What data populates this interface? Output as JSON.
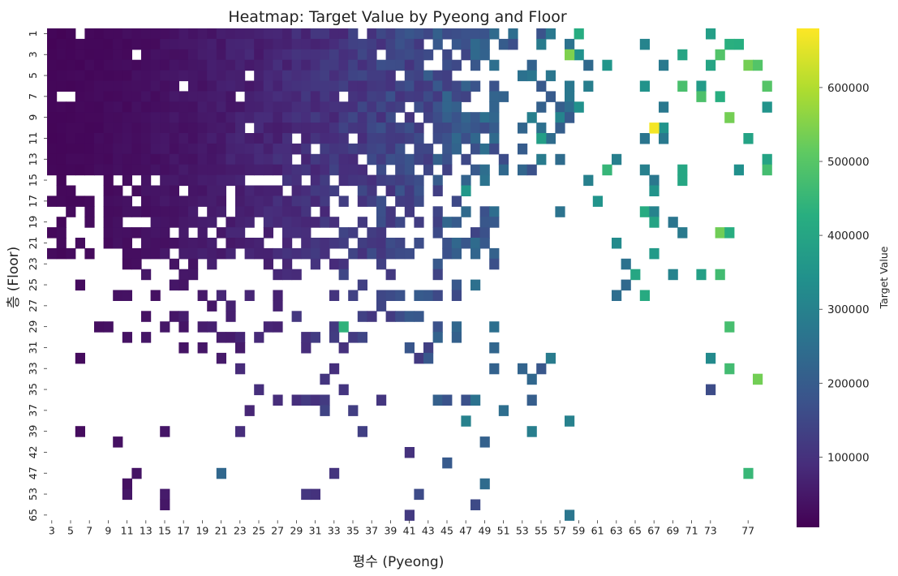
{
  "chart_data": {
    "type": "heatmap",
    "title": "Heatmap: Target Value by Pyeong and Floor",
    "xlabel": "평수 (Pyeong)",
    "ylabel": "층 (Floor)",
    "x_tick_labels": [
      "3",
      "5",
      "7",
      "9",
      "11",
      "13",
      "15",
      "17",
      "19",
      "21",
      "23",
      "25",
      "27",
      "29",
      "31",
      "33",
      "35",
      "37",
      "39",
      "41",
      "43",
      "45",
      "47",
      "49",
      "51",
      "53",
      "55",
      "57",
      "59",
      "61",
      "63",
      "65",
      "67",
      "69",
      "71",
      "73",
      "77"
    ],
    "y_tick_labels": [
      "1",
      "3",
      "5",
      "7",
      "9",
      "11",
      "13",
      "15",
      "17",
      "19",
      "21",
      "23",
      "25",
      "27",
      "29",
      "31",
      "33",
      "35",
      "37",
      "39",
      "42",
      "47",
      "53",
      "65"
    ],
    "x_pyeong_range": [
      3,
      79
    ],
    "y_floor_rows": [
      1,
      2,
      3,
      4,
      5,
      6,
      7,
      8,
      9,
      10,
      11,
      12,
      13,
      14,
      15,
      16,
      17,
      18,
      19,
      20,
      21,
      22,
      23,
      24,
      25,
      26,
      27,
      28,
      29,
      30,
      31,
      32,
      33,
      34,
      35,
      36,
      37,
      38,
      39,
      40,
      42,
      45,
      47,
      50,
      53,
      57,
      65
    ],
    "colorbar": {
      "label": "Target Value",
      "ticks": [
        "100000",
        "200000",
        "300000",
        "400000",
        "500000",
        "600000"
      ],
      "range": [
        5000,
        680000
      ],
      "colormap": "viridis"
    },
    "notable_cells": [
      {
        "pyeong": 67,
        "floor": 10,
        "value": 670000
      },
      {
        "pyeong": 58,
        "floor": 3,
        "value": 545000
      },
      {
        "pyeong": 70,
        "floor": 6,
        "value": 480000
      },
      {
        "pyeong": 62,
        "floor": 14,
        "value": 450000
      },
      {
        "pyeong": 59,
        "floor": 1,
        "value": 420000
      },
      {
        "pyeong": 34,
        "floor": 29,
        "value": 440000
      },
      {
        "pyeong": 73,
        "floor": 1,
        "value": 380000
      },
      {
        "pyeong": 55,
        "floor": 11,
        "value": 380000
      },
      {
        "pyeong": 67,
        "floor": 16,
        "value": 350000
      },
      {
        "pyeong": 47,
        "floor": 16,
        "value": 360000
      },
      {
        "pyeong": 47,
        "floor": 38,
        "value": 300000
      },
      {
        "pyeong": 58,
        "floor": 38,
        "value": 300000
      },
      {
        "pyeong": 21,
        "floor": 47,
        "value": 230000
      },
      {
        "pyeong": 49,
        "floor": 50,
        "value": 240000
      },
      {
        "pyeong": 73,
        "floor": 35,
        "value": 160000
      },
      {
        "pyeong": 41,
        "floor": 65,
        "value": 120000
      },
      {
        "pyeong": 30,
        "floor": 53,
        "value": 110000
      },
      {
        "pyeong": 41,
        "floor": 42,
        "value": 100000
      }
    ]
  }
}
